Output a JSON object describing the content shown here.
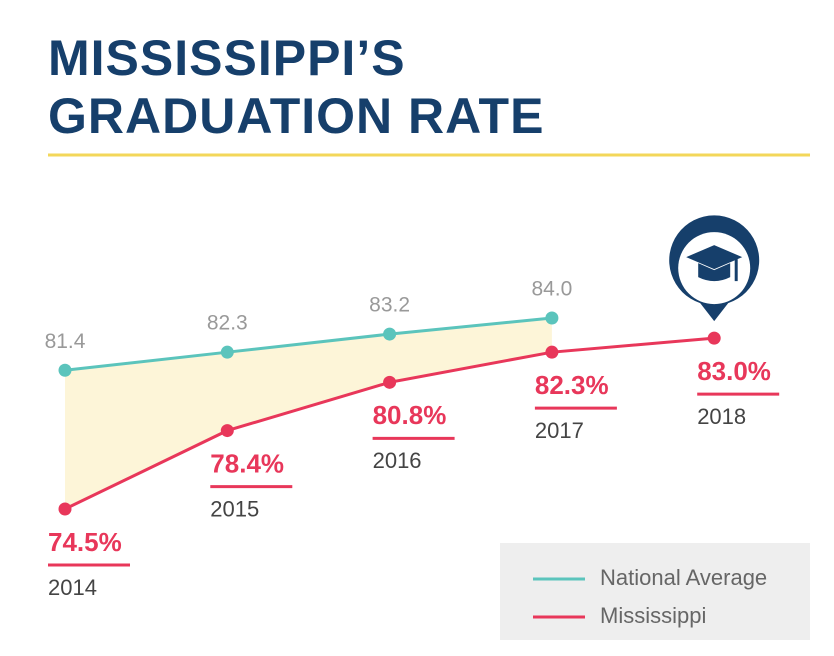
{
  "chart_data": {
    "type": "line",
    "title": "MISSISSIPPI’S",
    "subtitle": "GRADUATION RATE",
    "categories": [
      "2014",
      "2015",
      "2016",
      "2017",
      "2018"
    ],
    "series": [
      {
        "name": "National Average",
        "color": "#5bc4bc",
        "values": [
          81.4,
          82.3,
          83.2,
          84.0,
          null
        ],
        "value_labels": [
          "81.4",
          "82.3",
          "83.2",
          "84.0",
          null
        ]
      },
      {
        "name": "Mississippi",
        "color": "#e8375a",
        "values": [
          74.5,
          78.4,
          80.8,
          82.3,
          83.0
        ],
        "value_labels": [
          "74.5%",
          "78.4%",
          "80.8%",
          "82.3%",
          "83.0%"
        ]
      }
    ],
    "legend": "bottom-right"
  }
}
